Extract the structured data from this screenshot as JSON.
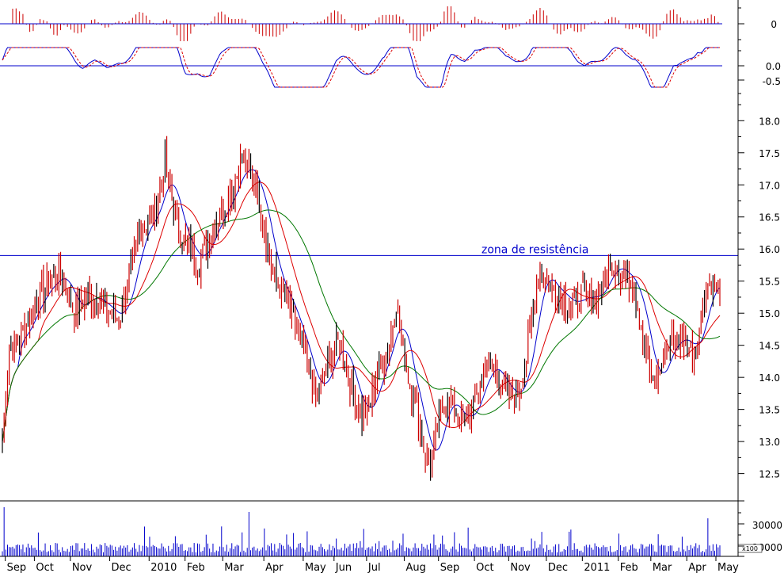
{
  "chart_data": {
    "type": "candlestick",
    "annotation": "zona de resistência",
    "resistance_level": 15.9,
    "main_panel": {
      "yticks": [
        12.5,
        13.0,
        13.5,
        14.0,
        14.5,
        15.0,
        15.5,
        16.0,
        16.5,
        17.0,
        17.5,
        18.0
      ],
      "ylim": [
        12.1,
        18.3
      ],
      "path": [
        [
          0,
          13.0
        ],
        [
          4,
          14.5
        ],
        [
          10,
          14.6
        ],
        [
          20,
          15.2
        ],
        [
          28,
          15.5
        ],
        [
          35,
          15.6
        ],
        [
          42,
          15.0
        ],
        [
          50,
          15.3
        ],
        [
          60,
          15.1
        ],
        [
          68,
          14.9
        ],
        [
          75,
          15.6
        ],
        [
          80,
          16.3
        ],
        [
          88,
          16.5
        ],
        [
          95,
          17.3
        ],
        [
          102,
          16.4
        ],
        [
          108,
          16.0
        ],
        [
          115,
          15.8
        ],
        [
          122,
          16.3
        ],
        [
          128,
          16.6
        ],
        [
          135,
          17.0
        ],
        [
          140,
          17.4
        ],
        [
          143,
          17.2
        ],
        [
          147,
          17.1
        ],
        [
          152,
          16.5
        ],
        [
          158,
          15.6
        ],
        [
          164,
          15.3
        ],
        [
          170,
          14.9
        ],
        [
          177,
          14.3
        ],
        [
          183,
          13.7
        ],
        [
          190,
          14.2
        ],
        [
          197,
          14.6
        ],
        [
          203,
          13.9
        ],
        [
          210,
          13.4
        ],
        [
          215,
          13.6
        ],
        [
          220,
          14.2
        ],
        [
          226,
          14.5
        ],
        [
          230,
          15.2
        ],
        [
          234,
          14.4
        ],
        [
          238,
          13.9
        ],
        [
          242,
          13.5
        ],
        [
          246,
          12.9
        ],
        [
          250,
          12.6
        ],
        [
          254,
          13.2
        ],
        [
          258,
          13.7
        ],
        [
          264,
          13.5
        ],
        [
          270,
          13.3
        ],
        [
          276,
          13.6
        ],
        [
          282,
          14.2
        ],
        [
          288,
          14.1
        ],
        [
          296,
          13.7
        ],
        [
          302,
          13.8
        ],
        [
          306,
          14.3
        ],
        [
          310,
          15.1
        ],
        [
          314,
          15.7
        ],
        [
          320,
          15.4
        ],
        [
          326,
          15.3
        ],
        [
          332,
          15.1
        ],
        [
          338,
          15.3
        ],
        [
          344,
          15.2
        ],
        [
          350,
          15.4
        ],
        [
          356,
          15.8
        ],
        [
          362,
          15.6
        ],
        [
          368,
          15.5
        ],
        [
          372,
          15.0
        ],
        [
          377,
          14.3
        ],
        [
          380,
          13.8
        ],
        [
          386,
          14.3
        ],
        [
          392,
          14.6
        ],
        [
          398,
          14.6
        ],
        [
          403,
          14.4
        ],
        [
          408,
          14.8
        ],
        [
          410,
          15.4
        ],
        [
          414,
          15.5
        ],
        [
          417,
          15.3
        ]
      ],
      "series": [
        {
          "color": "#0000cc",
          "window": 10
        },
        {
          "color": "#dd0000",
          "window": 22
        },
        {
          "color": "#007700",
          "window": 45
        }
      ]
    },
    "macd_panel": {
      "yticks": [
        "0.0",
        "-0.5"
      ],
      "ylim": [
        -0.75,
        0.35
      ]
    },
    "histogram_panel": {
      "ytick": "0"
    },
    "volume_panel": {
      "yticks": [
        "30000",
        "10000"
      ],
      "multiplier": "x100"
    },
    "x_labels": [
      "Sep",
      "Oct",
      "Nov",
      "Dec",
      "2010",
      "Feb",
      "Mar",
      "Apr",
      "May",
      "Jun",
      "Jul",
      "Aug",
      "Sep",
      "Oct",
      "Nov",
      "Dec",
      "2011",
      "Feb",
      "Mar",
      "Apr",
      "May"
    ],
    "x_label_days": [
      4,
      21,
      42,
      65,
      88,
      109,
      131,
      155,
      178,
      196,
      215,
      237,
      257,
      278,
      298,
      320,
      341,
      362,
      381,
      402,
      419
    ],
    "n_days": 420,
    "colors": {
      "candle": "#cc0000",
      "candle_dark": "#000000",
      "volume": "#0000cc",
      "resistance": "#0000cc",
      "macd": "#0000cc",
      "signal": "#dd0000",
      "hist": "#cc0000"
    }
  }
}
